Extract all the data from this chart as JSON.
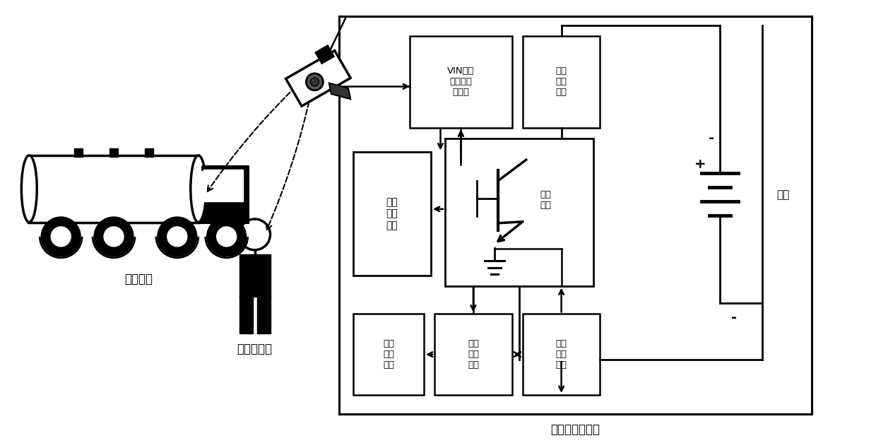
{
  "fig_width": 12.4,
  "fig_height": 6.27,
  "bg_color": "#ffffff",
  "labels": {
    "charging_car": "充电汽车",
    "charging_driver": "充电驾驶员",
    "battery": "电池",
    "switch": "接通\n开关",
    "vin": "VIN码及\n注册用户\n信息库",
    "rectifier": "充电\n整流\n模块",
    "video": "视频\n识别\n模块",
    "order": "订单\n管理\n模块",
    "data": "数据\n处理\n模块",
    "control": "控制\n执行\n模块",
    "station": "电动汽车充电桩"
  }
}
